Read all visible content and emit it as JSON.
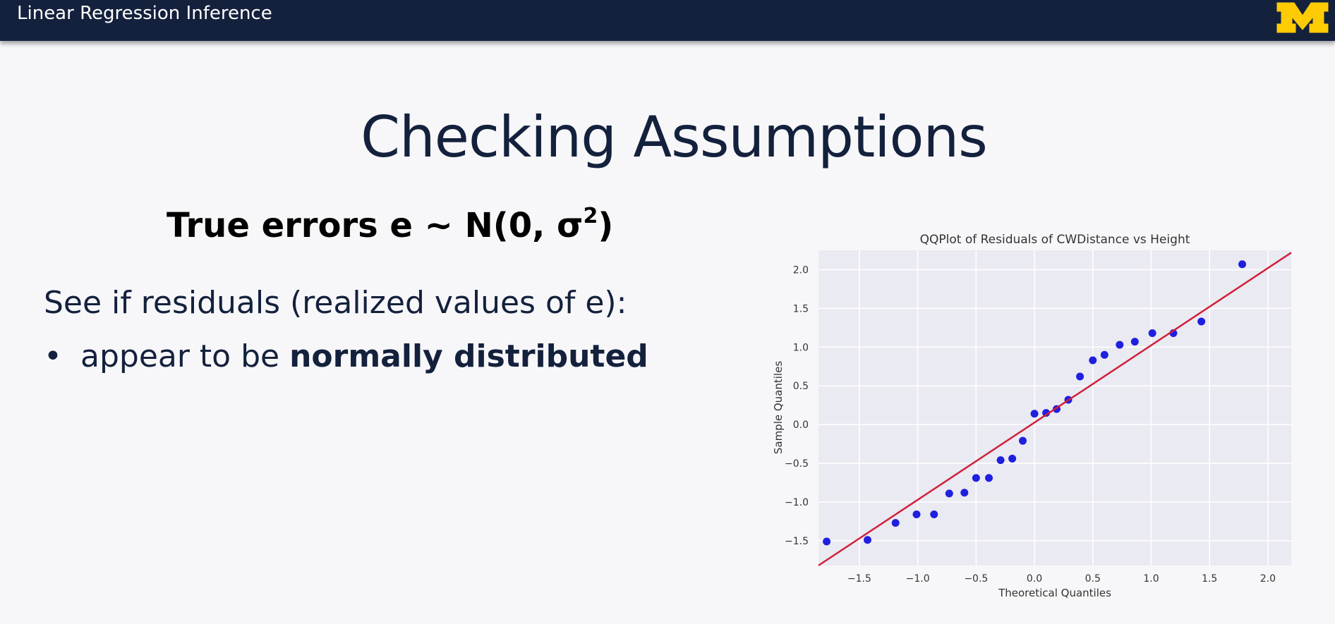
{
  "header": {
    "title": "Linear Regression Inference",
    "logo_colors": {
      "maize": "#ffcb05",
      "blue": "#14213d"
    }
  },
  "slide": {
    "title": "Checking Assumptions",
    "subhead_main": "True errors e ~ N(0, σ",
    "subhead_sup": "2",
    "subhead_close": ")",
    "line1": "See if residuals (realized values of e):",
    "bullet": "•",
    "bullet_text": "appear to be ",
    "bullet_bold": "normally distributed"
  },
  "chart_data": {
    "type": "scatter",
    "title": "QQPlot of Residuals of CWDistance vs Height",
    "xlabel": "Theoretical Quantiles",
    "ylabel": "Sample Quantiles",
    "xlim": [
      -1.85,
      2.2
    ],
    "ylim": [
      -1.82,
      2.25
    ],
    "xticks": [
      -1.5,
      -1.0,
      -0.5,
      0.0,
      0.5,
      1.0,
      1.5,
      2.0
    ],
    "yticks": [
      -1.5,
      -1.0,
      -0.5,
      0.0,
      0.5,
      1.0,
      1.5,
      2.0
    ],
    "xtick_labels": [
      "−1.5",
      "−1.0",
      "−0.5",
      "0.0",
      "0.5",
      "1.0",
      "1.5",
      "2.0"
    ],
    "ytick_labels": [
      "−1.5",
      "−1.0",
      "−0.5",
      "0.0",
      "0.5",
      "1.0",
      "1.5",
      "2.0"
    ],
    "grid": true,
    "background_color": "#eaeaf2",
    "point_color": "#1f1fe0",
    "line_color": "#d0203a",
    "reference_line": {
      "x": [
        -1.85,
        2.2
      ],
      "y": [
        -1.82,
        2.22
      ]
    },
    "points": [
      {
        "x": -1.78,
        "y": -1.51
      },
      {
        "x": -1.43,
        "y": -1.49
      },
      {
        "x": -1.19,
        "y": -1.27
      },
      {
        "x": -1.01,
        "y": -1.16
      },
      {
        "x": -0.86,
        "y": -1.16
      },
      {
        "x": -0.73,
        "y": -0.89
      },
      {
        "x": -0.6,
        "y": -0.88
      },
      {
        "x": -0.5,
        "y": -0.69
      },
      {
        "x": -0.39,
        "y": -0.69
      },
      {
        "x": -0.29,
        "y": -0.46
      },
      {
        "x": -0.19,
        "y": -0.44
      },
      {
        "x": -0.1,
        "y": -0.21
      },
      {
        "x": 0.0,
        "y": 0.14
      },
      {
        "x": 0.1,
        "y": 0.15
      },
      {
        "x": 0.19,
        "y": 0.2
      },
      {
        "x": 0.29,
        "y": 0.32
      },
      {
        "x": 0.39,
        "y": 0.62
      },
      {
        "x": 0.5,
        "y": 0.83
      },
      {
        "x": 0.6,
        "y": 0.9
      },
      {
        "x": 0.73,
        "y": 1.03
      },
      {
        "x": 0.86,
        "y": 1.07
      },
      {
        "x": 1.01,
        "y": 1.18
      },
      {
        "x": 1.19,
        "y": 1.18
      },
      {
        "x": 1.43,
        "y": 1.33
      },
      {
        "x": 1.78,
        "y": 2.07
      }
    ]
  }
}
